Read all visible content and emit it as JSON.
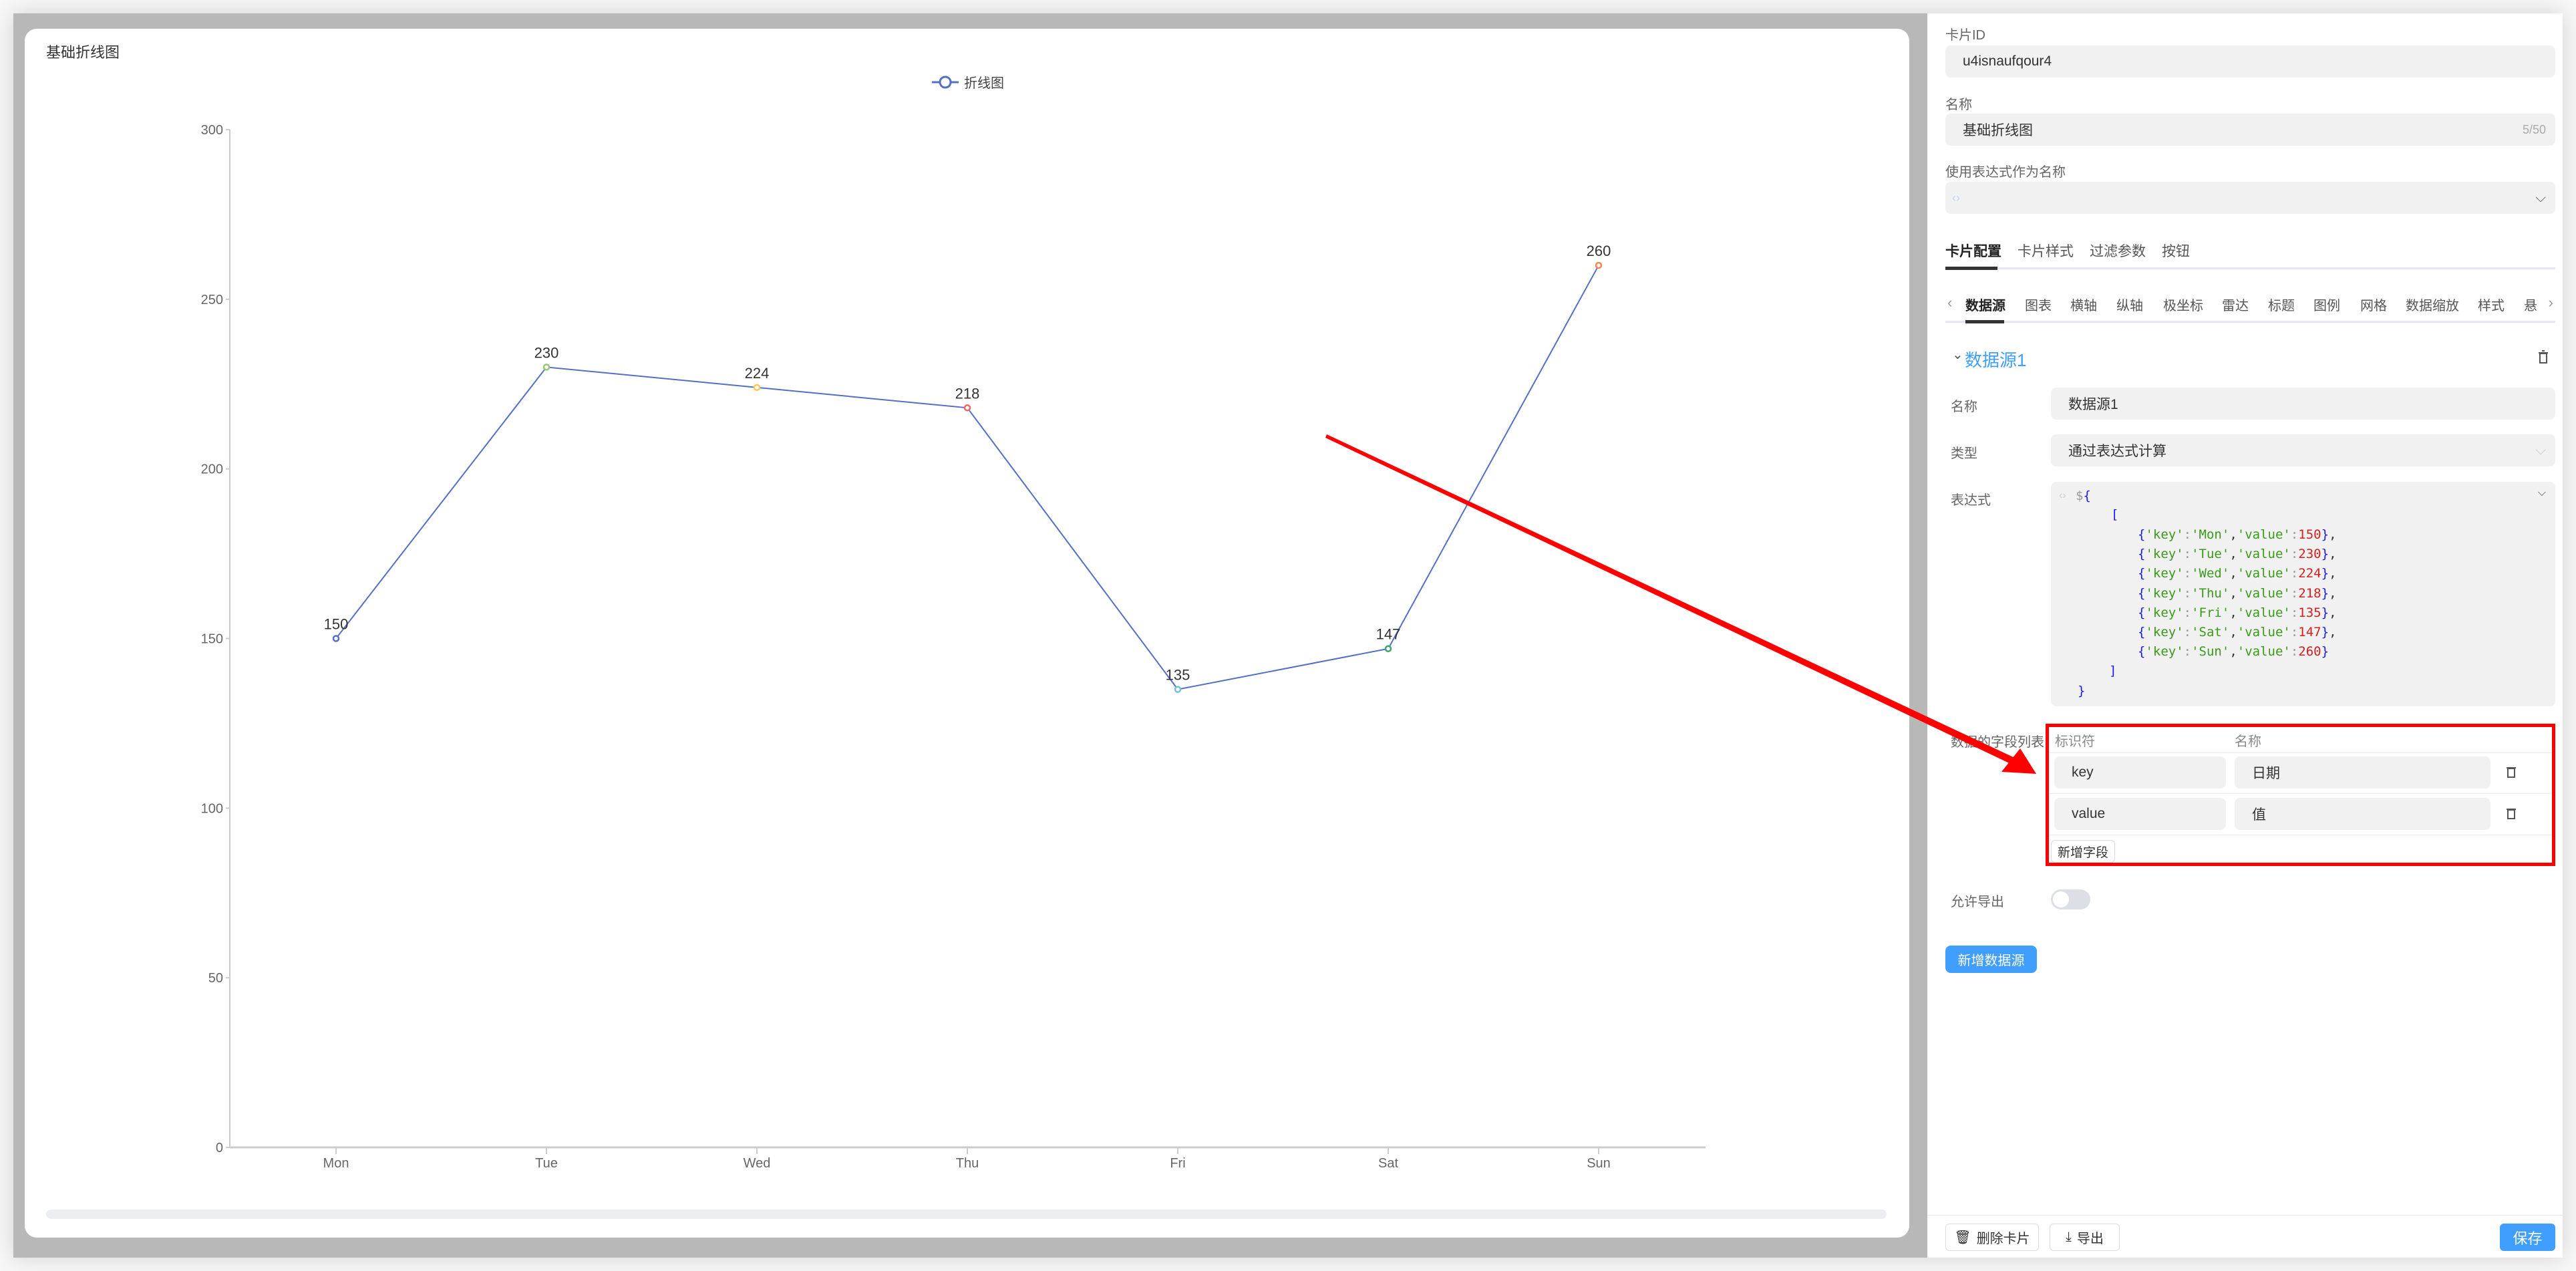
{
  "chart_card": {
    "title": "基础折线图"
  },
  "chart_data": {
    "type": "line",
    "title": "基础折线图",
    "categories": [
      "Mon",
      "Tue",
      "Wed",
      "Thu",
      "Fri",
      "Sat",
      "Sun"
    ],
    "series": [
      {
        "name": "折线图",
        "values": [
          150,
          230,
          224,
          218,
          135,
          147,
          260
        ],
        "color": "#5470c6"
      }
    ],
    "point_colors": [
      "#5470c6",
      "#91cc75",
      "#fac858",
      "#ee6666",
      "#73c0de",
      "#3ba272",
      "#fc8452"
    ],
    "yticks": [
      0,
      50,
      100,
      150,
      200,
      250,
      300
    ],
    "ylim": [
      0,
      300
    ],
    "data_labels": true,
    "grid": false,
    "legend": "top-center"
  },
  "panel": {
    "card_id_label": "卡片ID",
    "card_id_value": "u4isnaufqour4",
    "name_label": "名称",
    "name_value": "基础折线图",
    "name_count": "5/50",
    "expr_name_label": "使用表达式作为名称",
    "tabs": [
      "卡片配置",
      "卡片样式",
      "过滤参数",
      "按钮"
    ],
    "subtabs": [
      "数据源",
      "图表",
      "横轴",
      "纵轴",
      "极坐标",
      "雷达",
      "标题",
      "图例",
      "网格",
      "数据缩放",
      "样式",
      "悬"
    ],
    "datasource": {
      "title": "数据源1",
      "name_label": "名称",
      "name_value": "数据源1",
      "type_label": "类型",
      "type_value": "通过表达式计算",
      "expr_label": "表达式",
      "fields_label": "数据的字段列表",
      "fields_header": [
        "标识符",
        "名称"
      ],
      "fields": [
        {
          "id": "key",
          "name": "日期"
        },
        {
          "id": "value",
          "name": "值"
        }
      ],
      "add_field": "新增字段",
      "export_label": "允许导出",
      "export_enabled": false
    },
    "add_datasource": "新增数据源",
    "footer": {
      "delete": "删除卡片",
      "export": "导出",
      "save": "保存"
    }
  },
  "accent": "#409eff",
  "annotation_color": "#ff0000"
}
